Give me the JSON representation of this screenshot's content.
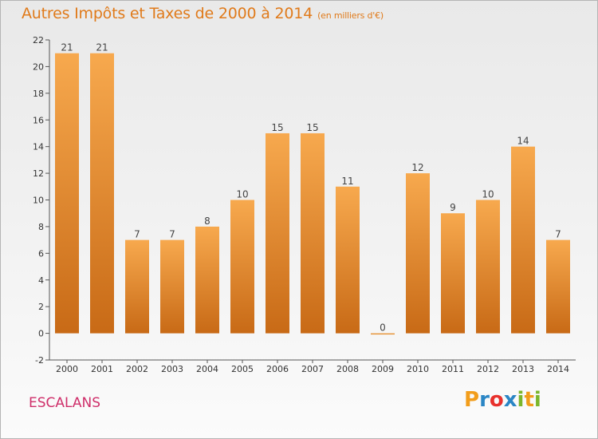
{
  "header": {
    "title": "Autres Impôts et Taxes de 2000 à 2014",
    "unit": "(en milliers d'€)"
  },
  "footer": {
    "commune": "ESCALANS",
    "logo_letters": [
      "P",
      "r",
      "o",
      "x",
      "i",
      "t",
      "i"
    ],
    "logo_colors": [
      "#f29d1b",
      "#2b86c5",
      "#e8312d",
      "#2b86c5",
      "#7bb62b",
      "#f29d1b",
      "#7bb62b"
    ]
  },
  "colors": {
    "bar_top": "#f7a94e",
    "bar_bottom": "#c86a16",
    "axis": "#555555",
    "grid": "#dddddd"
  },
  "chart_data": {
    "type": "bar",
    "title": "Autres Impôts et Taxes de 2000 à 2014",
    "subtitle": "(en milliers d'€)",
    "categories": [
      "2000",
      "2001",
      "2002",
      "2003",
      "2004",
      "2005",
      "2006",
      "2007",
      "2008",
      "2009",
      "2010",
      "2011",
      "2012",
      "2013",
      "2014"
    ],
    "values": [
      21,
      21,
      7,
      7,
      8,
      10,
      15,
      15,
      11,
      0,
      12,
      9,
      10,
      14,
      7
    ],
    "data_labels": [
      "21",
      "21",
      "7",
      "7",
      "8",
      "10",
      "15",
      "15",
      "11",
      "0",
      "12",
      "9",
      "10",
      "14",
      "7"
    ],
    "yticks": [
      "-2",
      "0",
      "2",
      "4",
      "6",
      "8",
      "10",
      "12",
      "14",
      "16",
      "18",
      "20",
      "22"
    ],
    "ylim": [
      -2,
      22
    ],
    "xlabel": "",
    "ylabel": "",
    "grid": false,
    "legend": "none"
  }
}
